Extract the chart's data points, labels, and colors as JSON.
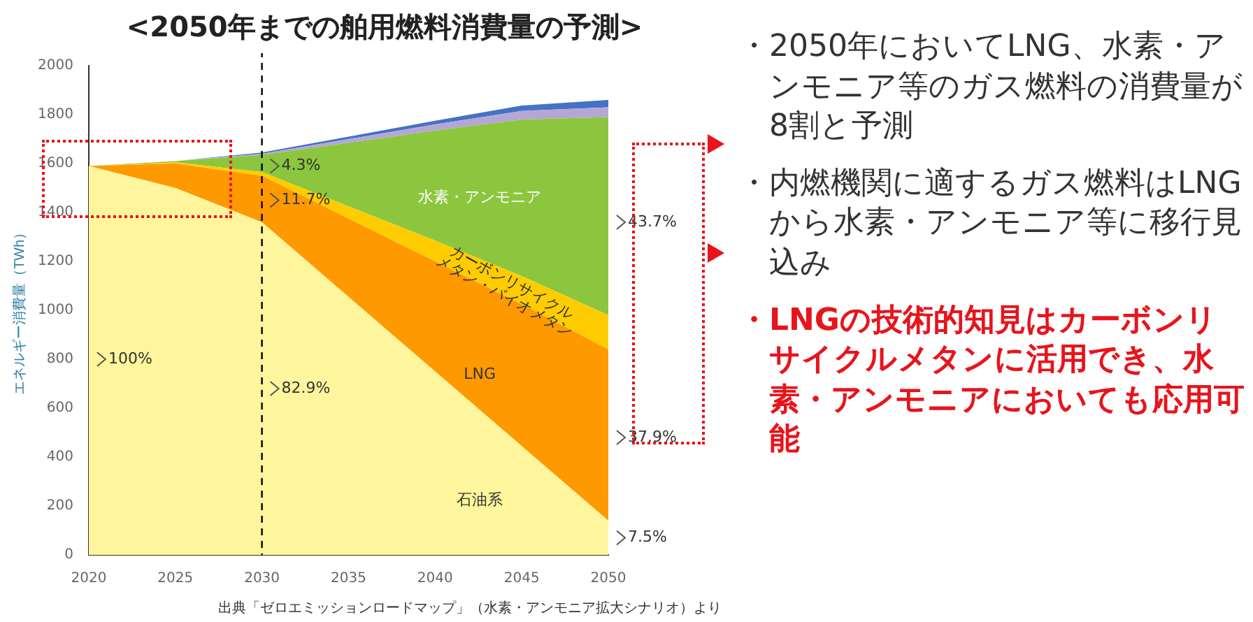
{
  "chart_data": {
    "type": "area",
    "title": "<2050年までの舶用燃料消費量の予測>",
    "ylabel": "エネルギー消費量（TWh）",
    "stacked": true,
    "x": [
      2020,
      2025,
      2030,
      2035,
      2040,
      2045,
      2050
    ],
    "xlim": [
      2020,
      2050
    ],
    "xticks": [
      2020,
      2025,
      2030,
      2035,
      2040,
      2045,
      2050
    ],
    "ylim": [
      0,
      2000
    ],
    "yticks": [
      0,
      200,
      400,
      600,
      800,
      1000,
      1200,
      1400,
      1600,
      1800,
      2000
    ],
    "series": [
      {
        "name": "石油系",
        "color": "#fff59d",
        "values": [
          1590,
          1500,
          1360,
          1055,
          750,
          445,
          140
        ]
      },
      {
        "name": "LNG",
        "color": "#ff9900",
        "values": [
          0,
          100,
          190,
          320,
          450,
          580,
          700
        ]
      },
      {
        "name": "カーボンリサイクル メタン・バイオメタン",
        "color": "#ffcc00",
        "values": [
          0,
          5,
          15,
          50,
          85,
          115,
          140
        ]
      },
      {
        "name": "水素・アンモニア",
        "color": "#8cc63f",
        "values": [
          0,
          5,
          70,
          260,
          450,
          640,
          810
        ]
      },
      {
        "color": "#b4a7d6",
        "values": [
          0,
          0,
          5,
          15,
          25,
          35,
          40
        ]
      },
      {
        "color": "#4472c4",
        "values": [
          0,
          0,
          5,
          10,
          15,
          22,
          30
        ]
      }
    ],
    "ref_lines": [
      {
        "axis": "x",
        "value": 2030,
        "color": "#000000",
        "line_style": "dashed"
      }
    ],
    "grid": false,
    "legend": false,
    "annotations": [
      {
        "text": "100%",
        "x": 2020,
        "y": 800
      },
      {
        "text": "4.3%",
        "x": 2030,
        "y": 1590
      },
      {
        "text": "11.7%",
        "x": 2030,
        "y": 1450
      },
      {
        "text": "82.9%",
        "x": 2030,
        "y": 680
      },
      {
        "text": "43.7%",
        "x": 2050,
        "y": 1360
      },
      {
        "text": "37.9%",
        "x": 2050,
        "y": 480
      },
      {
        "text": "7.5%",
        "x": 2050,
        "y": 70
      },
      "・2050年においてLNG、水素・アンモニア等のガス燃料の消費量が8割と予測",
      "・内燃機関に適するガス燃料はLNGから水素・アンモニア等に移行見込み",
      "・LNGの技術的知見はカーボンリサイクルメタンに活用でき、水素・アンモニアにおいても応用可能",
      "出典「ゼロエミッションロードマップ」（水素・アンモニア拡大シナリオ）より"
    ]
  }
}
